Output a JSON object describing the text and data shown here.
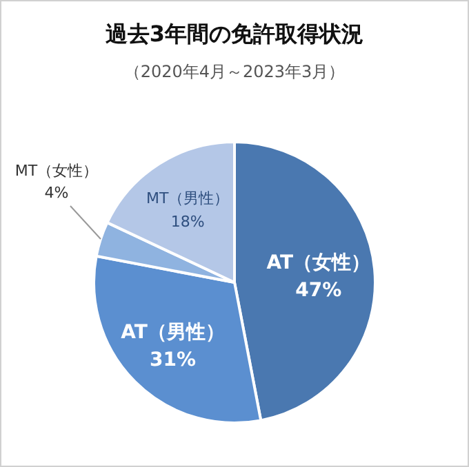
{
  "chart_data": {
    "type": "pie",
    "title": "過去3年間の免許取得状況",
    "subtitle": "（2020年4月～2023年3月）",
    "categories": [
      "AT（女性）",
      "AT（男性）",
      "MT（女性）",
      "MT（男性）"
    ],
    "values": [
      47,
      31,
      4,
      18
    ],
    "colors": [
      "#4a78b0",
      "#5b8fd0",
      "#8fb3e0",
      "#b4c7e7"
    ],
    "value_labels": [
      "47%",
      "31%",
      "4%",
      "18%"
    ]
  }
}
